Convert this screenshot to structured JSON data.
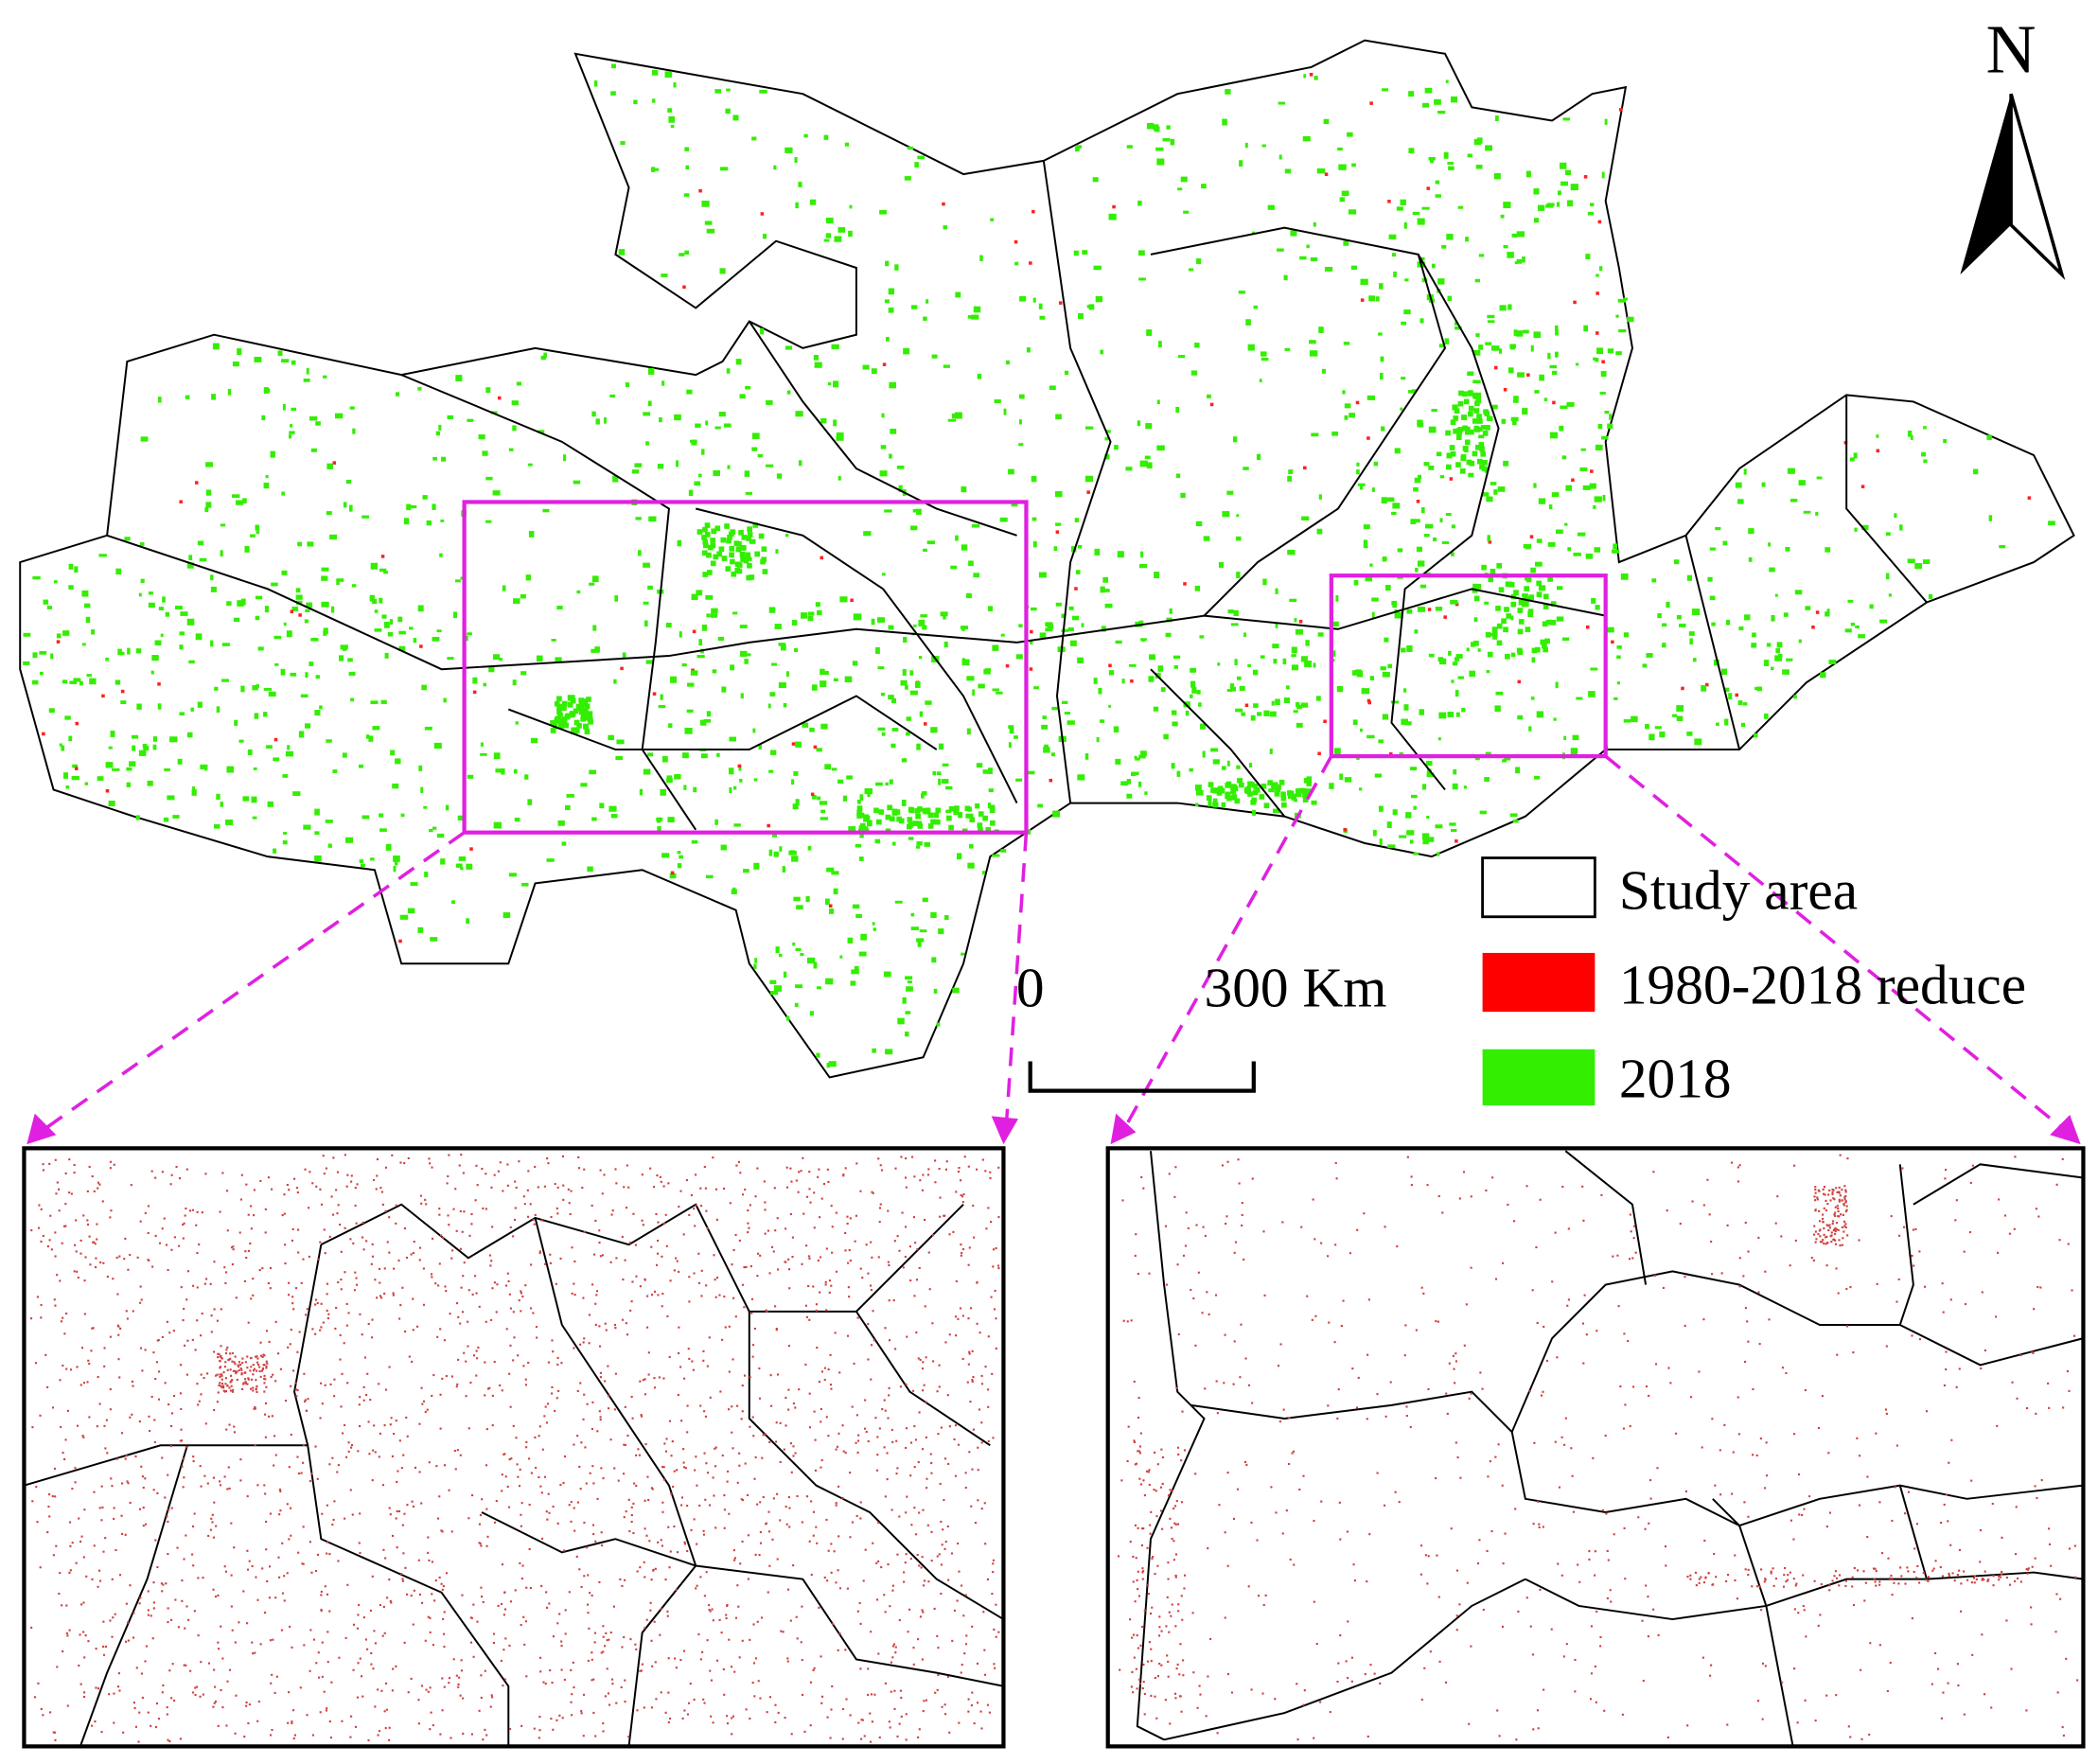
{
  "north_arrow": {
    "label": "N"
  },
  "scale_bar": {
    "labels": [
      "0",
      "300 Km"
    ]
  },
  "legend": {
    "items": [
      {
        "label": "Study area"
      },
      {
        "label": "1980-2018 reduce"
      },
      {
        "label": "2018"
      }
    ]
  }
}
